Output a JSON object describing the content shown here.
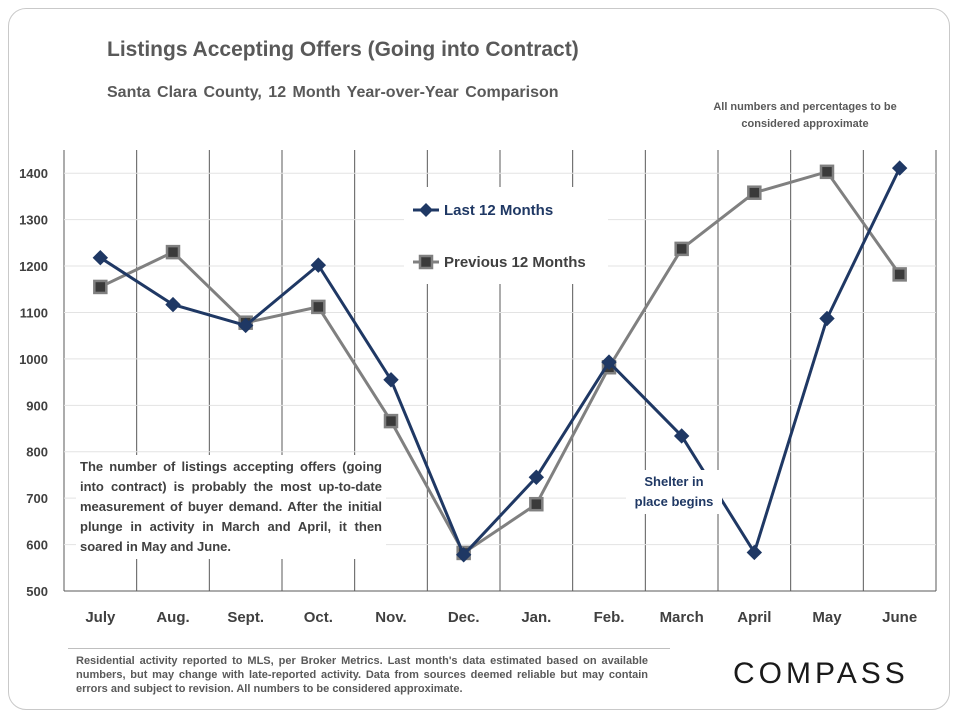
{
  "header": {
    "title": "Listings Accepting Offers (Going into Contract)",
    "subtitle": "Santa Clara County, 12 Month Year-over-Year  Comparison",
    "disclaimer": "All numbers and percentages to be considered approximate"
  },
  "chart_data": {
    "type": "line",
    "categories": [
      "July",
      "Aug.",
      "Sept.",
      "Oct.",
      "Nov.",
      "Dec.",
      "Jan.",
      "Feb.",
      "March",
      "April",
      "May",
      "June"
    ],
    "ylim": [
      500,
      1450
    ],
    "yticks": [
      500,
      600,
      700,
      800,
      900,
      1000,
      1100,
      1200,
      1300,
      1400
    ],
    "grid": "vertical lines between categories",
    "legend_position": "top-center",
    "series": [
      {
        "name": "Last 12 Months",
        "color": "#1f3864",
        "marker": "diamond",
        "values": [
          1218,
          1117,
          1072,
          1202,
          955,
          578,
          745,
          993,
          834,
          583,
          1087,
          1411
        ]
      },
      {
        "name": "Previous 12 Months",
        "color": "#808080",
        "marker": "square",
        "values": [
          1155,
          1230,
          1078,
          1112,
          866,
          582,
          687,
          982,
          1237,
          1358,
          1403,
          1182
        ]
      }
    ],
    "annotations": {
      "note": "The number of listings accepting offers (going into contract) is probably the most up-to-date measurement of buyer demand. After the initial plunge in activity in March and April, it then soared in May and June.",
      "shelter": "Shelter in place begins"
    }
  },
  "footer": {
    "text": "Residential activity reported to MLS, per Broker Metrics. Last month's data estimated based on available numbers, but may change with late-reported activity. Data from sources deemed reliable but may contain errors and subject to revision. All numbers to be considered approximate.",
    "logo": "COMPASS"
  }
}
